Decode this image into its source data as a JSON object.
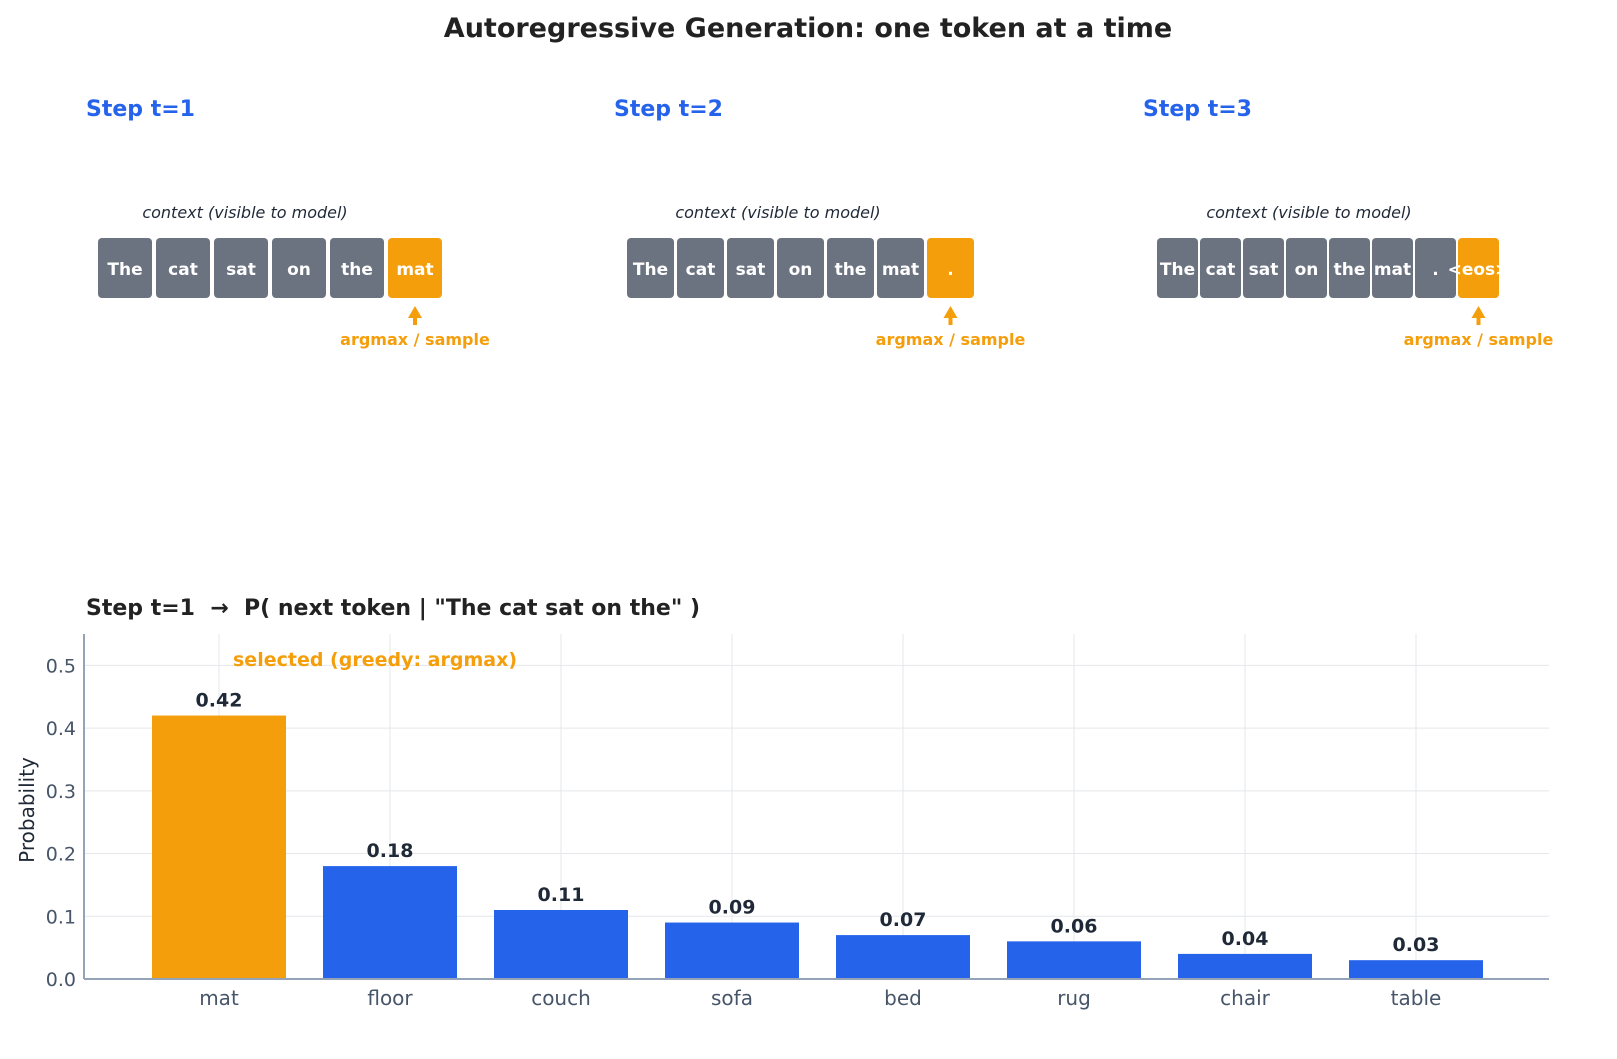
{
  "title": "Autoregressive Generation: one token at a time",
  "colors": {
    "context": "#6b7280",
    "selected": "#f59e0b",
    "bar": "#2563eb",
    "step_title": "#2563eb",
    "text_dark": "#1f2937",
    "axis": "#94a3b8",
    "grid": "#e5e7eb"
  },
  "steps": [
    {
      "title": "Step t=1",
      "context_label": "context (visible to model)",
      "tokens": [
        "The",
        "cat",
        "sat",
        "on",
        "the"
      ],
      "selected": "mat",
      "arrow_label": "argmax / sample"
    },
    {
      "title": "Step t=2",
      "context_label": "context (visible to model)",
      "tokens": [
        "The",
        "cat",
        "sat",
        "on",
        "the",
        "mat"
      ],
      "selected": ".",
      "arrow_label": "argmax / sample"
    },
    {
      "title": "Step t=3",
      "context_label": "context (visible to model)",
      "tokens": [
        "The",
        "cat",
        "sat",
        "on",
        "the",
        "mat",
        "."
      ],
      "selected": "<eos>",
      "arrow_label": "argmax / sample"
    }
  ],
  "chart_data": {
    "type": "bar",
    "title": "Step t=1  →  P( next token | \"The cat sat on the\" )",
    "categories": [
      "mat",
      "floor",
      "couch",
      "sofa",
      "bed",
      "rug",
      "chair",
      "table"
    ],
    "values": [
      0.42,
      0.18,
      0.11,
      0.09,
      0.07,
      0.06,
      0.04,
      0.03
    ],
    "value_labels": [
      "0.42",
      "0.18",
      "0.11",
      "0.09",
      "0.07",
      "0.06",
      "0.04",
      "0.03"
    ],
    "highlighted_category": "mat",
    "annotation": "selected (greedy: argmax)",
    "xlabel": "",
    "ylabel": "Probability",
    "ylim": [
      0,
      0.55
    ],
    "yticks": [
      "0.0",
      "0.1",
      "0.2",
      "0.3",
      "0.4",
      "0.5"
    ],
    "grid": true
  }
}
